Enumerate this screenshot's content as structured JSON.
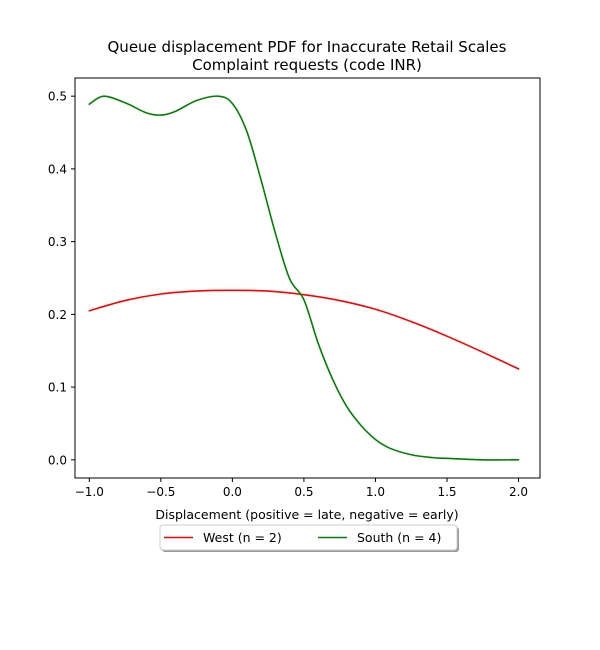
{
  "chart_data": {
    "type": "line",
    "title_line1": "Queue displacement PDF for Inaccurate Retail Scales",
    "title_line2": "Complaint  requests (code INR)",
    "xlabel": "Displacement (positive = late, negative = early)",
    "ylabel": "",
    "xlim": [
      -1.1,
      2.15
    ],
    "ylim": [
      -0.025,
      0.525
    ],
    "xticks": [
      -1.0,
      -0.5,
      0.0,
      0.5,
      1.0,
      1.5,
      2.0
    ],
    "xtick_labels": [
      "−1.0",
      "−0.5",
      "0.0",
      "0.5",
      "1.0",
      "1.5",
      "2.0"
    ],
    "yticks": [
      0.0,
      0.1,
      0.2,
      0.3,
      0.4,
      0.5
    ],
    "ytick_labels": [
      "0.0",
      "0.1",
      "0.2",
      "0.3",
      "0.4",
      "0.5"
    ],
    "grid": false,
    "legend_position": "below plot, centered",
    "series": [
      {
        "name": "West (n = 2)",
        "color": "#ff0000",
        "x": [
          -1.0,
          -0.75,
          -0.5,
          -0.25,
          0.0,
          0.25,
          0.5,
          0.75,
          1.0,
          1.25,
          1.5,
          1.75,
          2.0
        ],
        "y": [
          0.205,
          0.219,
          0.228,
          0.232,
          0.233,
          0.232,
          0.227,
          0.219,
          0.207,
          0.19,
          0.17,
          0.148,
          0.125
        ]
      },
      {
        "name": "South (n = 4)",
        "color": "#008000",
        "x": [
          -1.0,
          -0.9,
          -0.75,
          -0.6,
          -0.5,
          -0.4,
          -0.25,
          -0.1,
          0.0,
          0.1,
          0.2,
          0.3,
          0.4,
          0.5,
          0.6,
          0.7,
          0.8,
          0.9,
          1.0,
          1.1,
          1.25,
          1.4,
          1.5,
          1.75,
          2.0
        ],
        "y": [
          0.489,
          0.5,
          0.491,
          0.477,
          0.474,
          0.479,
          0.494,
          0.5,
          0.49,
          0.452,
          0.385,
          0.312,
          0.249,
          0.22,
          0.16,
          0.111,
          0.073,
          0.047,
          0.028,
          0.016,
          0.007,
          0.003,
          0.002,
          0.0,
          0.0
        ]
      }
    ]
  }
}
